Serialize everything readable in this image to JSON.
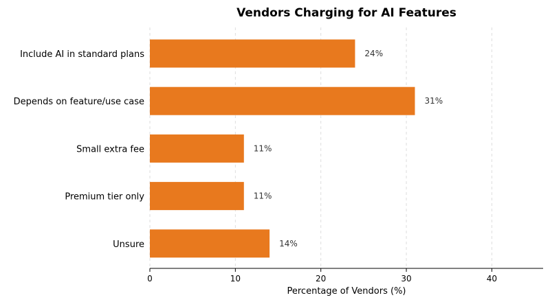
{
  "chart_data": {
    "type": "bar",
    "orientation": "horizontal",
    "title": "Vendors Charging for AI Features",
    "xlabel": "Percentage of Vendors (%)",
    "ylabel": "",
    "categories": [
      "Include AI in standard plans",
      "Depends on feature/use case",
      "Small extra fee",
      "Premium tier only",
      "Unsure"
    ],
    "values": [
      24,
      31,
      11,
      11,
      14
    ],
    "value_labels": [
      "24%",
      "31%",
      "11%",
      "11%",
      "14%"
    ],
    "xlim": [
      0,
      46
    ],
    "xticks": [
      0,
      10,
      20,
      30,
      40
    ],
    "grid": "x-dashed",
    "bar_color": "#E8791E"
  }
}
